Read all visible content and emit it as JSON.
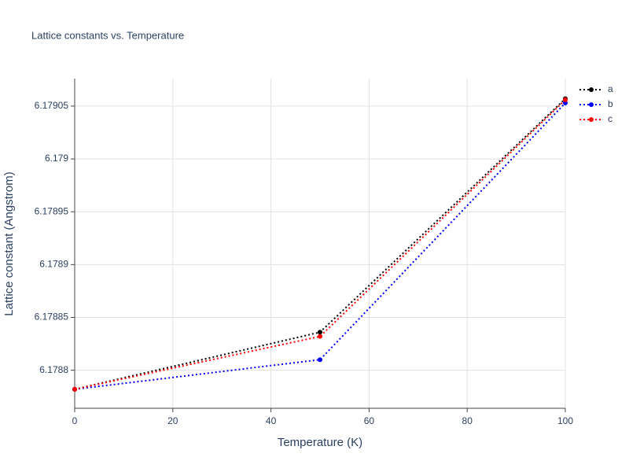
{
  "chart_data": {
    "type": "line",
    "title": "Lattice constants vs. Temperature",
    "x_label": "Temperature (K)",
    "y_label": "Lattice constant (Angstrom)",
    "x": [
      0,
      50,
      100
    ],
    "series": [
      {
        "name": "a",
        "color": "#000000",
        "values": [
          6.178782,
          6.178836,
          6.179057
        ]
      },
      {
        "name": "b",
        "color": "#0000ff",
        "values": [
          6.178782,
          6.17881,
          6.179053
        ]
      },
      {
        "name": "c",
        "color": "#ff0000",
        "values": [
          6.178782,
          6.178832,
          6.179056
        ]
      }
    ],
    "xlim": [
      0,
      100
    ],
    "xticks": [
      0,
      20,
      40,
      60,
      80,
      100
    ],
    "ylim": [
      6.178764,
      6.179076
    ],
    "yticks": [
      6.1788,
      6.17885,
      6.1789,
      6.17895,
      6.179,
      6.17905
    ],
    "grid": true,
    "legend": "right"
  }
}
